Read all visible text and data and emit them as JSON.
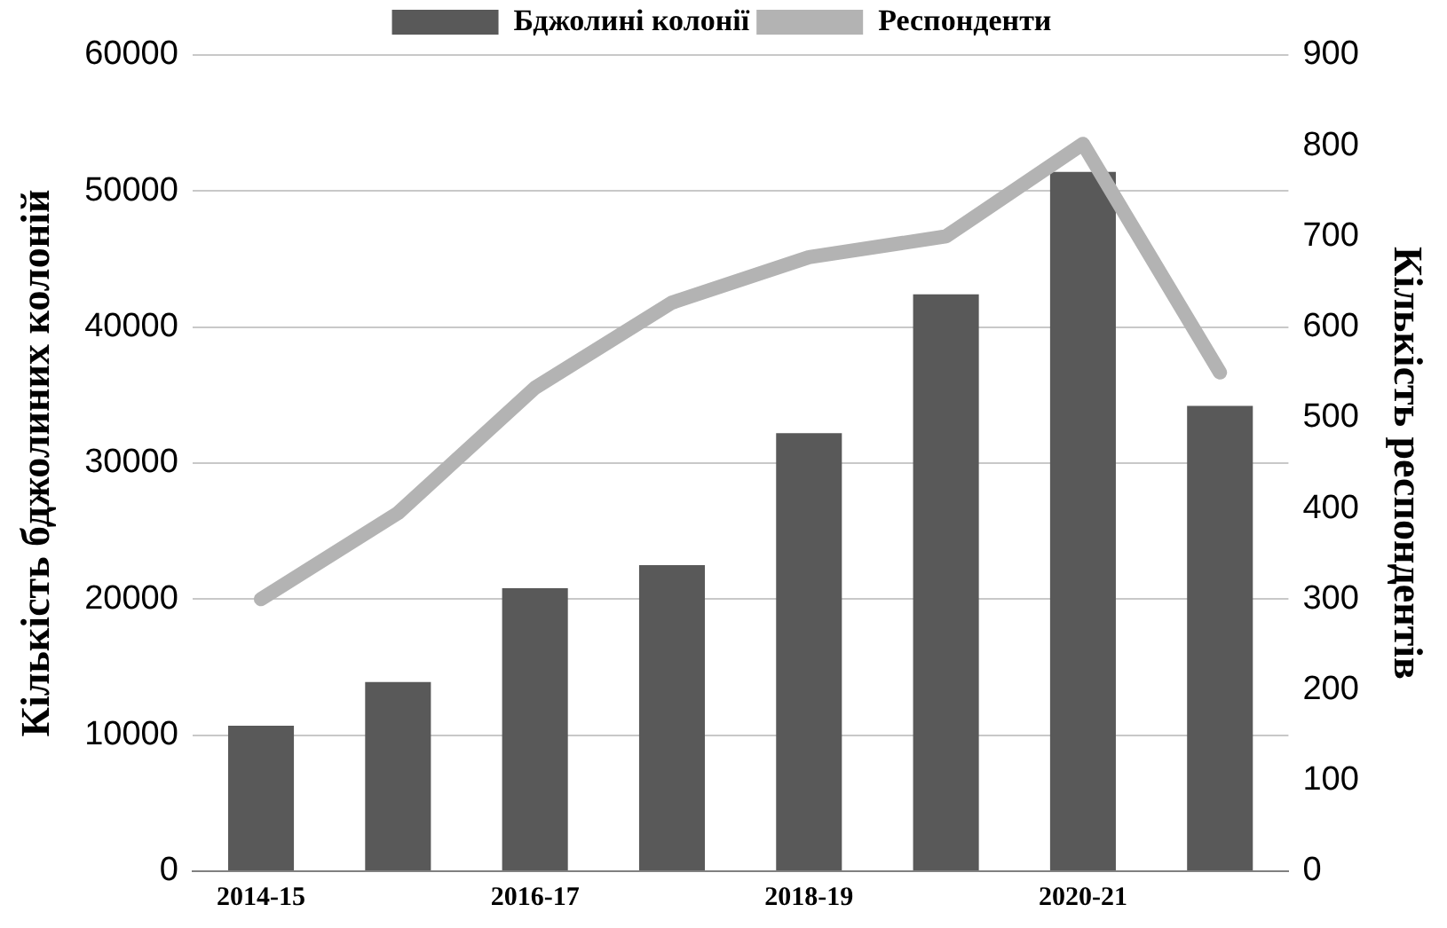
{
  "chart_data": {
    "type": "bar",
    "categories": [
      "2014-15",
      null,
      "2016-17",
      null,
      "2018-19",
      null,
      "2020-21",
      null
    ],
    "ylabel": "Кількість бджолиних колоній",
    "y2label": "Кількість респондентів",
    "series": [
      {
        "name": "Бджолині колонії",
        "color": "#595959",
        "values": [
          10700,
          13900,
          20800,
          22500,
          32200,
          42400,
          51400,
          34200
        ]
      },
      {
        "name": "Респонденти",
        "type": "line",
        "axis": "y2",
        "color": "#b3b3b3",
        "values": [
          300,
          395,
          533,
          627,
          677,
          700,
          802,
          550
        ]
      }
    ],
    "ylim": [
      0,
      60000
    ],
    "yticks": [
      0,
      10000,
      20000,
      30000,
      40000,
      50000,
      60000
    ],
    "y2lim": [
      0,
      900
    ],
    "y2ticks": [
      0,
      100,
      200,
      300,
      400,
      500,
      600,
      700,
      800,
      900
    ],
    "grid": "y",
    "legend": "top",
    "marker": "none"
  }
}
